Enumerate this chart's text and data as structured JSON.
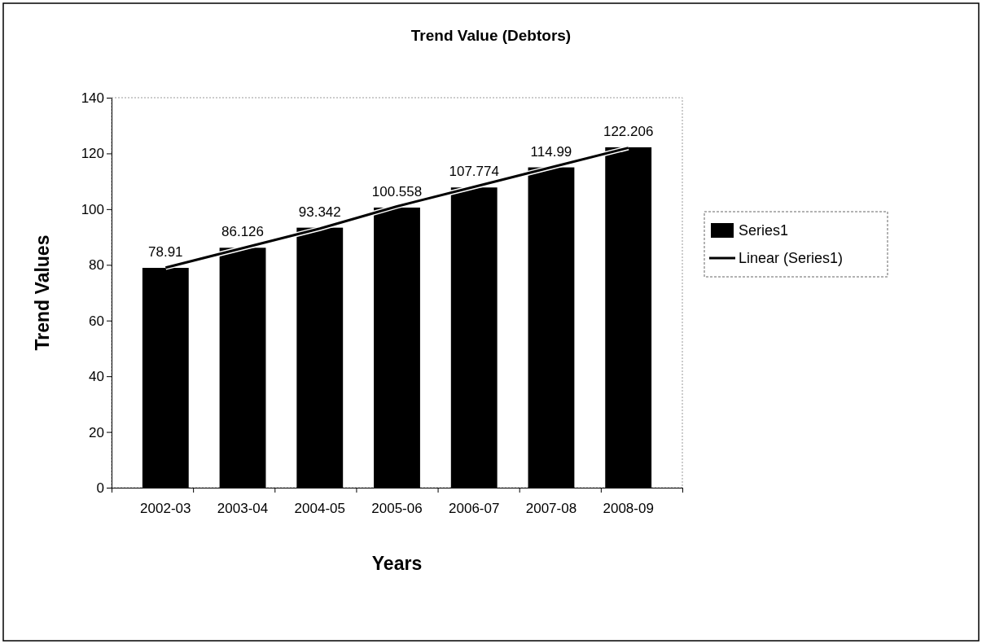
{
  "chart_data": {
    "type": "bar",
    "title": "Trend Value (Debtors)",
    "xlabel": "Years",
    "ylabel": "Trend Values",
    "categories": [
      "2002-03",
      "2003-04",
      "2004-05",
      "2005-06",
      "2006-07",
      "2007-08",
      "2008-09"
    ],
    "series": [
      {
        "name": "Series1",
        "color": "#000000",
        "values": [
          78.91,
          86.126,
          93.342,
          100.558,
          107.774,
          114.99,
          122.206
        ],
        "value_labels": [
          "78.91",
          "86.126",
          "93.342",
          "100.558",
          "107.774",
          "114.99",
          "122.206"
        ]
      },
      {
        "name": "Linear (Series1)",
        "type": "line",
        "color": "#000000",
        "values": [
          79,
          86,
          93,
          101,
          108,
          115,
          122
        ],
        "line_style": "solid"
      }
    ],
    "ylim": [
      0,
      140
    ],
    "yticks": [
      0,
      20,
      40,
      60,
      80,
      100,
      120,
      140
    ],
    "grid": false,
    "legend": "right",
    "marker": "none"
  }
}
